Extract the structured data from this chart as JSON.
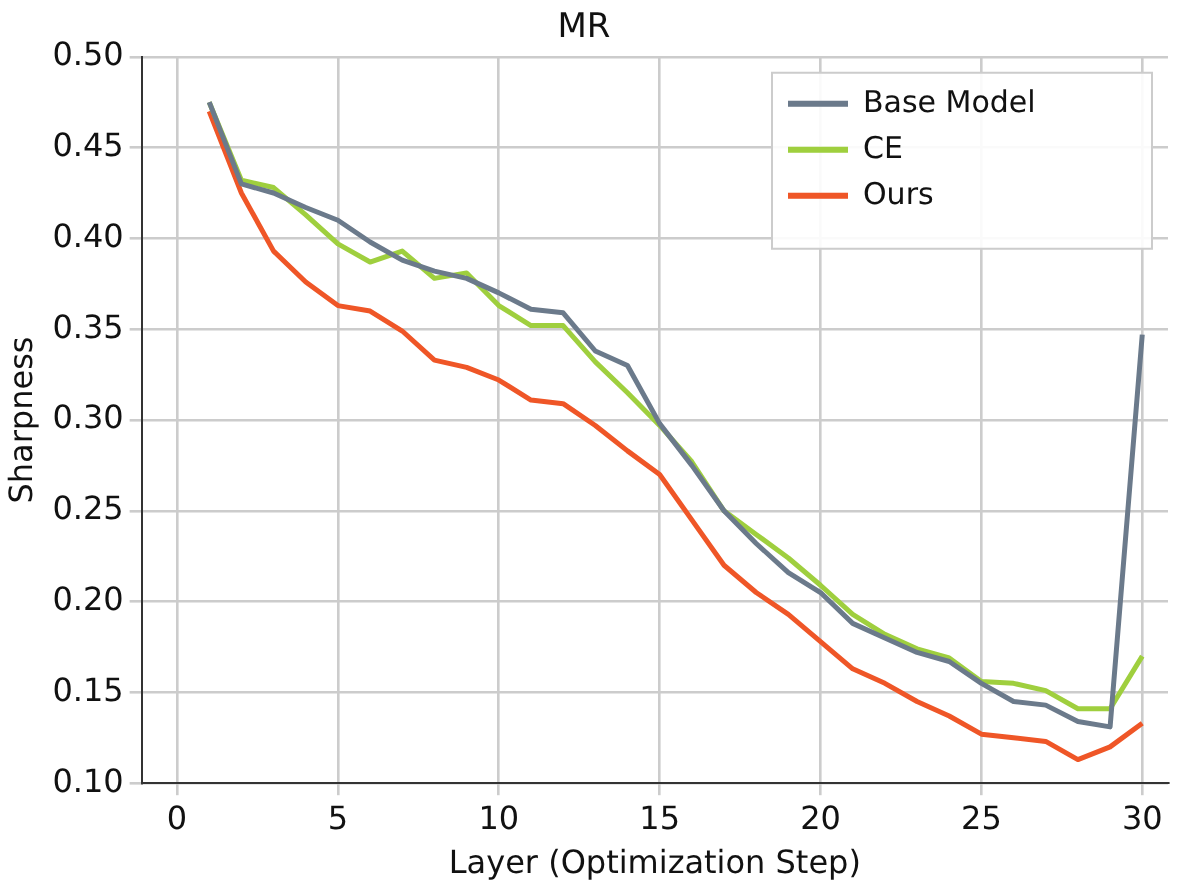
{
  "chart_data": {
    "type": "line",
    "title": "MR",
    "xlabel": "Layer (Optimization Step)",
    "ylabel": "Sharpness",
    "x": [
      1,
      2,
      3,
      4,
      5,
      6,
      7,
      8,
      9,
      10,
      11,
      12,
      13,
      14,
      15,
      16,
      17,
      18,
      19,
      20,
      21,
      22,
      23,
      24,
      25,
      26,
      27,
      28,
      29,
      30
    ],
    "series": [
      {
        "name": "Base Model",
        "color": "#6b7a8b",
        "values": [
          0.475,
          0.43,
          0.425,
          0.417,
          0.41,
          0.398,
          0.388,
          0.382,
          0.378,
          0.37,
          0.361,
          0.359,
          0.338,
          0.33,
          0.298,
          0.275,
          0.25,
          0.232,
          0.216,
          0.205,
          0.188,
          0.18,
          0.172,
          0.167,
          0.155,
          0.145,
          0.143,
          0.134,
          0.131,
          0.347
        ]
      },
      {
        "name": "CE",
        "color": "#9fcf3e",
        "values": [
          0.475,
          0.432,
          0.428,
          0.413,
          0.397,
          0.387,
          0.393,
          0.378,
          0.381,
          0.363,
          0.352,
          0.352,
          0.332,
          0.315,
          0.297,
          0.277,
          0.25,
          0.237,
          0.224,
          0.209,
          0.193,
          0.182,
          0.174,
          0.169,
          0.156,
          0.155,
          0.151,
          0.141,
          0.141,
          0.17
        ]
      },
      {
        "name": "Ours",
        "color": "#ef5627",
        "values": [
          0.47,
          0.425,
          0.393,
          0.376,
          0.363,
          0.36,
          0.349,
          0.333,
          0.329,
          0.322,
          0.311,
          0.309,
          0.297,
          0.283,
          0.27,
          0.245,
          0.22,
          0.205,
          0.193,
          0.178,
          0.163,
          0.155,
          0.145,
          0.137,
          0.127,
          0.125,
          0.123,
          0.113,
          0.12,
          0.133
        ]
      }
    ],
    "xlim": [
      -1.1,
      30.8
    ],
    "xticks": [
      0,
      5,
      10,
      15,
      20,
      25,
      30
    ],
    "ylim": [
      0.1,
      0.5
    ],
    "yticks": [
      {
        "value": 0.1,
        "label": "0.10"
      },
      {
        "value": 0.15,
        "label": "0.15"
      },
      {
        "value": 0.2,
        "label": "0.20"
      },
      {
        "value": 0.25,
        "label": "0.25"
      },
      {
        "value": 0.3,
        "label": "0.30"
      },
      {
        "value": 0.35,
        "label": "0.35"
      },
      {
        "value": 0.4,
        "label": "0.40"
      },
      {
        "value": 0.45,
        "label": "0.45"
      },
      {
        "value": 0.5,
        "label": "0.50"
      }
    ],
    "grid": true,
    "legend": "top right",
    "marker": "none",
    "line_style": "solid"
  }
}
